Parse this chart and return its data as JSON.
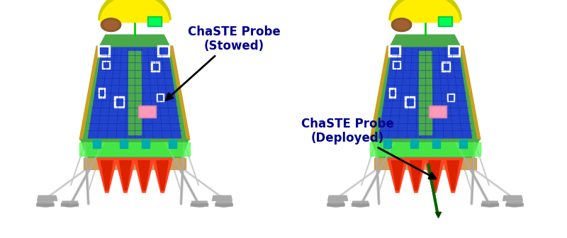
{
  "fig_width": 8.0,
  "fig_height": 3.36,
  "dpi": 100,
  "bg_color": "#ffffff",
  "label1_text": "ChaSTE Probe\n(Stowed)",
  "label2_text": "ChaSTE Probe\n(Deployed)",
  "text_color": "#00008B",
  "text_fontsize": 12,
  "text_fontweight": "bold",
  "arrow_color": "black",
  "arrow_linewidth": 2.0,
  "lander_body_color": "#1a3aaa",
  "lander_body_color2": "#2244cc",
  "lander_top_color": "#ffee00",
  "lander_frame_color": "#3a8c3a",
  "lander_frame_color2": "#4aaa4a",
  "lander_leg_color": "#cccccc",
  "lander_strut_color": "#dddddd",
  "lander_cone_color": "#dd2200",
  "lander_cone_color2": "#ff4422",
  "lander_platform_color": "#c8a060",
  "lander_gold_strut": "#c8a020",
  "lander_teal": "#00aaaa",
  "dome_shadow": "#cccc00",
  "panel_white": "#ffffff",
  "panel_cell": "#0011cc"
}
